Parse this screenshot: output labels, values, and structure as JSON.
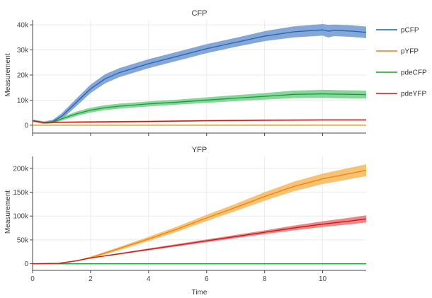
{
  "chart_data": [
    {
      "type": "line",
      "title": "CFP",
      "xlabel": "",
      "ylabel": "Measurement",
      "xlim": [
        0,
        11.5
      ],
      "ylim": [
        -2000,
        42000
      ],
      "x_ticks": [
        0,
        2,
        4,
        6,
        8,
        10
      ],
      "y_ticks": [
        0,
        10000,
        20000,
        30000,
        40000
      ],
      "y_tick_labels": [
        "0",
        "10k",
        "20k",
        "30k",
        "40k"
      ],
      "grid": true,
      "series": [
        {
          "name": "pCFP",
          "color": "#2166ac",
          "band_color": "#6f97d1",
          "x": [
            0,
            0.4,
            0.7,
            1,
            1.5,
            2,
            2.5,
            3,
            4,
            5,
            6,
            7,
            8,
            9,
            10,
            10.2,
            10.4,
            11,
            11.5
          ],
          "y": [
            1800,
            1000,
            1500,
            3500,
            9000,
            14500,
            18500,
            21000,
            24500,
            27500,
            30500,
            33000,
            35500,
            37200,
            38000,
            37500,
            37800,
            37500,
            37000
          ],
          "band": [
            500,
            500,
            700,
            1200,
            1500,
            1700,
            1800,
            1800,
            1800,
            1800,
            1800,
            1800,
            2000,
            2200,
            2300,
            2500,
            2300,
            2300,
            2300
          ]
        },
        {
          "name": "pYFP",
          "color": "#f07f0e",
          "band_color": "#f7b75a",
          "x": [
            0,
            11.5
          ],
          "y": [
            0,
            0
          ],
          "band": [
            0,
            0
          ]
        },
        {
          "name": "pdeCFP",
          "color": "#1a9a3a",
          "band_color": "#73d088",
          "x": [
            0,
            0.4,
            0.7,
            1,
            1.5,
            2,
            2.5,
            3,
            4,
            5,
            6,
            7,
            8,
            9,
            10,
            11,
            11.5
          ],
          "y": [
            1800,
            1000,
            1300,
            2500,
            4500,
            6000,
            7000,
            7600,
            8500,
            9200,
            10000,
            10800,
            11500,
            12300,
            12500,
            12300,
            12200
          ],
          "band": [
            400,
            400,
            500,
            700,
            900,
            1000,
            1000,
            1000,
            1000,
            1000,
            1100,
            1200,
            1300,
            1500,
            1600,
            1600,
            1600
          ]
        },
        {
          "name": "pdeYFP",
          "color": "#c21a1a",
          "band_color": "#ee7070",
          "x": [
            0,
            0.4,
            0.7,
            1,
            2,
            4,
            6,
            8,
            10,
            11.5
          ],
          "y": [
            1800,
            1000,
            1100,
            1200,
            1300,
            1500,
            1800,
            2000,
            2100,
            2100
          ],
          "band": [
            300,
            300,
            300,
            300,
            300,
            300,
            300,
            300,
            300,
            300
          ]
        }
      ]
    },
    {
      "type": "line",
      "title": "YFP",
      "xlabel": "Time",
      "ylabel": "Measurement",
      "xlim": [
        0,
        11.5
      ],
      "ylim": [
        -8000,
        225000
      ],
      "x_ticks": [
        0,
        2,
        4,
        6,
        8,
        10
      ],
      "y_ticks": [
        0,
        50000,
        100000,
        150000,
        200000
      ],
      "y_tick_labels": [
        "0",
        "50k",
        "100k",
        "150k",
        "200k"
      ],
      "grid": true,
      "series": [
        {
          "name": "pCFP",
          "color": "#2166ac",
          "band_color": "#6f97d1",
          "x": [
            0,
            11.5
          ],
          "y": [
            0,
            0
          ],
          "band": [
            0,
            0
          ]
        },
        {
          "name": "pYFP",
          "color": "#f07f0e",
          "band_color": "#f7b75a",
          "x": [
            0,
            0.9,
            1.5,
            2,
            3,
            4,
            5,
            6,
            7,
            8,
            9,
            10,
            11,
            11.5
          ],
          "y": [
            0,
            800,
            6000,
            13000,
            32000,
            52000,
            73000,
            96000,
            118000,
            141000,
            162000,
            178000,
            190000,
            196000
          ],
          "band": [
            0,
            300,
            1000,
            2000,
            3500,
            4500,
            5500,
            6500,
            7500,
            9000,
            10000,
            11000,
            12000,
            12500
          ]
        },
        {
          "name": "pdeCFP",
          "color": "#1a9a3a",
          "band_color": "#73d088",
          "x": [
            0,
            11.5
          ],
          "y": [
            0,
            0
          ],
          "band": [
            0,
            0
          ]
        },
        {
          "name": "pdeYFP",
          "color": "#c21a1a",
          "band_color": "#ee7070",
          "x": [
            0,
            0.9,
            1.5,
            2,
            3,
            4,
            5,
            6,
            7,
            8,
            9,
            10,
            11,
            11.5
          ],
          "y": [
            0,
            800,
            6000,
            12000,
            21000,
            30000,
            39000,
            48000,
            57000,
            66000,
            75000,
            83000,
            90000,
            94000
          ],
          "band": [
            0,
            200,
            600,
            1000,
            1500,
            2000,
            2500,
            3000,
            3500,
            4000,
            5000,
            6000,
            7000,
            7500
          ]
        }
      ]
    }
  ],
  "legend": {
    "placement": "top-right",
    "items": [
      {
        "label": "pCFP",
        "color": "#2166ac"
      },
      {
        "label": "pYFP",
        "color": "#f07f0e"
      },
      {
        "label": "pdeCFP",
        "color": "#1a9a3a"
      },
      {
        "label": "pdeYFP",
        "color": "#c21a1a"
      }
    ]
  }
}
